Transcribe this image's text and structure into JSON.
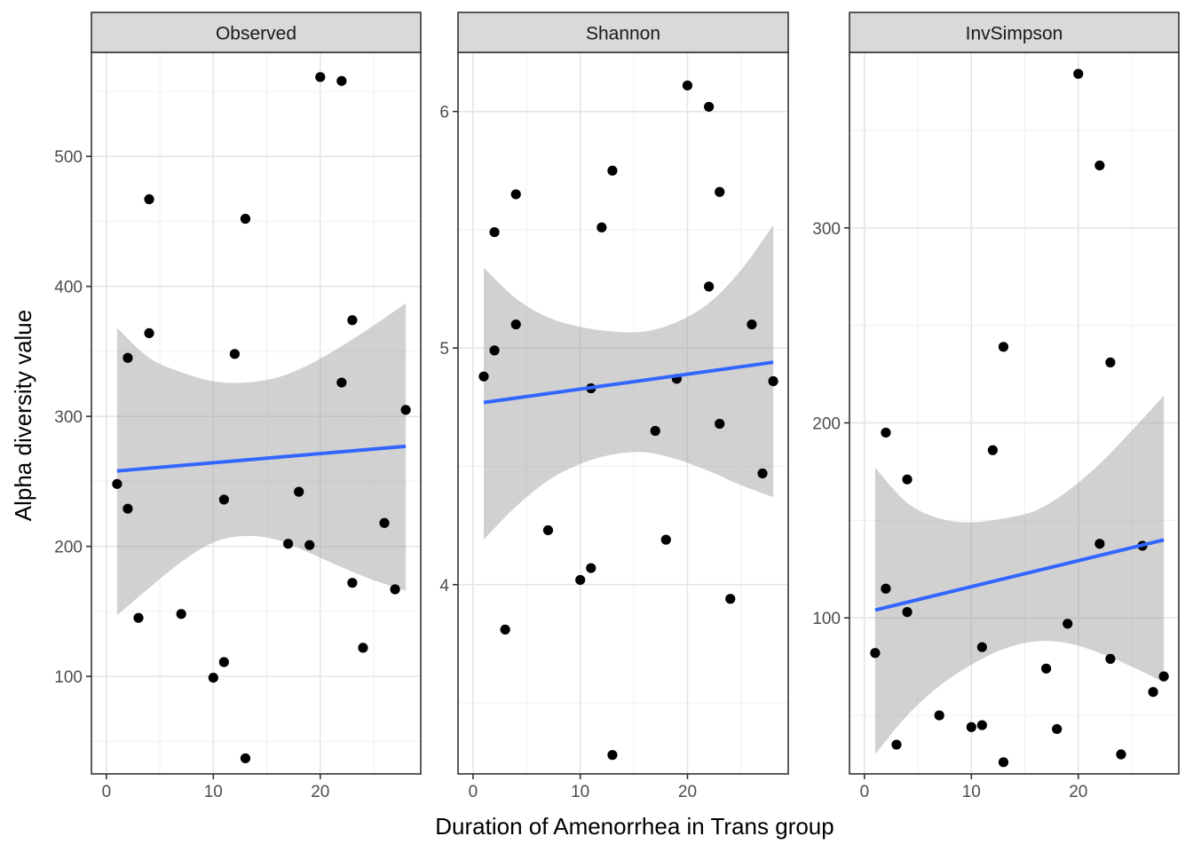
{
  "chart_data": {
    "type": "scatter",
    "layout": "facet_wrap",
    "xlabel": "Duration of Amenorrhea in Trans group",
    "ylabel": "Alpha diversity value",
    "xlim": [
      0,
      28
    ],
    "x_ticks": [
      0,
      10,
      20
    ],
    "grid": true,
    "point_color": "#000000",
    "line_color": "#3366FF",
    "ribbon_color": "#999999",
    "panels": [
      {
        "name": "Observed",
        "ylim": [
          25,
          580
        ],
        "y_ticks": [
          100,
          200,
          300,
          400,
          500
        ],
        "points": [
          [
            1,
            248
          ],
          [
            2,
            345
          ],
          [
            2,
            229
          ],
          [
            3,
            145
          ],
          [
            4,
            467
          ],
          [
            4,
            364
          ],
          [
            7,
            148
          ],
          [
            10,
            99
          ],
          [
            11,
            111
          ],
          [
            11,
            236
          ],
          [
            12,
            348
          ],
          [
            13,
            452
          ],
          [
            13,
            37
          ],
          [
            17,
            202
          ],
          [
            18,
            242
          ],
          [
            19,
            201
          ],
          [
            20,
            561
          ],
          [
            22,
            558
          ],
          [
            22,
            326
          ],
          [
            23,
            374
          ],
          [
            23,
            172
          ],
          [
            24,
            122
          ],
          [
            26,
            218
          ],
          [
            27,
            167
          ],
          [
            28,
            305
          ]
        ],
        "fit": {
          "x": [
            1,
            28
          ],
          "y": [
            258,
            277
          ]
        },
        "ribbon": {
          "x": [
            1,
            4,
            7,
            10,
            13,
            16,
            19,
            22,
            25,
            28
          ],
          "lower": [
            147,
            168,
            188,
            203,
            208,
            205,
            195,
            184,
            174,
            166
          ],
          "upper": [
            368,
            345,
            334,
            327,
            326,
            330,
            340,
            354,
            370,
            387
          ]
        }
      },
      {
        "name": "Shannon",
        "ylim": [
          3.2,
          6.25
        ],
        "y_ticks": [
          4,
          5,
          6
        ],
        "points": [
          [
            1,
            4.88
          ],
          [
            2,
            5.49
          ],
          [
            2,
            4.99
          ],
          [
            3,
            3.81
          ],
          [
            4,
            5.65
          ],
          [
            4,
            5.1
          ],
          [
            7,
            4.23
          ],
          [
            10,
            4.02
          ],
          [
            11,
            4.07
          ],
          [
            11,
            4.83
          ],
          [
            12,
            5.51
          ],
          [
            13,
            5.75
          ],
          [
            13,
            3.28
          ],
          [
            17,
            4.65
          ],
          [
            18,
            4.19
          ],
          [
            19,
            4.87
          ],
          [
            20,
            6.11
          ],
          [
            22,
            6.02
          ],
          [
            22,
            5.26
          ],
          [
            23,
            5.66
          ],
          [
            23,
            4.68
          ],
          [
            24,
            3.94
          ],
          [
            26,
            5.1
          ],
          [
            27,
            4.47
          ],
          [
            28,
            4.86
          ]
        ],
        "fit": {
          "x": [
            1,
            28
          ],
          "y": [
            4.77,
            4.94
          ]
        },
        "ribbon": {
          "x": [
            1,
            4,
            7,
            10,
            13,
            16,
            19,
            22,
            25,
            28
          ],
          "lower": [
            4.19,
            4.33,
            4.44,
            4.51,
            4.55,
            4.56,
            4.53,
            4.48,
            4.42,
            4.37
          ],
          "upper": [
            5.34,
            5.21,
            5.13,
            5.09,
            5.07,
            5.07,
            5.11,
            5.19,
            5.33,
            5.52
          ]
        }
      },
      {
        "name": "InvSimpson",
        "ylim": [
          20,
          390
        ],
        "y_ticks": [
          100,
          200,
          300
        ],
        "points": [
          [
            1,
            82
          ],
          [
            2,
            195
          ],
          [
            2,
            115
          ],
          [
            3,
            35
          ],
          [
            4,
            171
          ],
          [
            4,
            103
          ],
          [
            7,
            50
          ],
          [
            10,
            44
          ],
          [
            11,
            45
          ],
          [
            11,
            85
          ],
          [
            12,
            186
          ],
          [
            13,
            239
          ],
          [
            13,
            26
          ],
          [
            17,
            74
          ],
          [
            18,
            43
          ],
          [
            19,
            97
          ],
          [
            20,
            379
          ],
          [
            22,
            332
          ],
          [
            22,
            138
          ],
          [
            23,
            231
          ],
          [
            23,
            79
          ],
          [
            24,
            30
          ],
          [
            26,
            137
          ],
          [
            27,
            62
          ],
          [
            28,
            70
          ]
        ],
        "fit": {
          "x": [
            1,
            28
          ],
          "y": [
            104,
            140
          ]
        },
        "ribbon": {
          "x": [
            1,
            4,
            7,
            10,
            13,
            16,
            19,
            22,
            25,
            28
          ],
          "lower": [
            30,
            50,
            65,
            76,
            84,
            88,
            87,
            82,
            75,
            67
          ],
          "upper": [
            177,
            159,
            151,
            149,
            151,
            155,
            165,
            179,
            196,
            214
          ]
        }
      }
    ]
  }
}
